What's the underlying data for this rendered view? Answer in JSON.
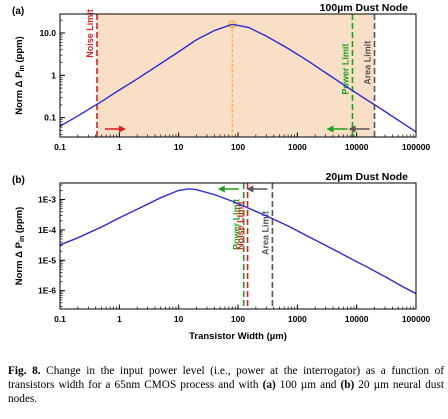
{
  "colors": {
    "curve": "#2b2bd6",
    "shade": "#f9dfc6",
    "noise": "#e41a1c",
    "power": "#1aa31a",
    "area": "#555555",
    "peak": "#f7a823"
  },
  "chart_data": [
    {
      "type": "line",
      "panel": "(a)",
      "title": "100µm Dust Node",
      "xlabel": "",
      "ylabel_main": "Norm Δ P",
      "ylabel_sub": "in",
      "ylabel_unit": "(ppm)",
      "xscale": "log",
      "yscale": "log",
      "xlim": [
        0.1,
        100000
      ],
      "ylim": [
        0.035,
        28
      ],
      "xticks": [
        0.1,
        1,
        10,
        100,
        1000,
        10000,
        100000
      ],
      "xtick_labels": [
        "0.1",
        "1",
        "10",
        "100",
        "1000",
        "10000",
        "100000"
      ],
      "yticks": [
        0.1,
        1,
        10
      ],
      "ytick_labels": [
        "0.1",
        "1",
        "10.0"
      ],
      "series": [
        {
          "x": [
            0.1,
            0.2,
            0.5,
            1,
            2,
            5,
            10,
            20,
            40,
            80,
            150,
            300,
            700,
            1500,
            3000,
            7000,
            15000,
            30000,
            60000,
            100000
          ],
          "y": [
            0.063,
            0.11,
            0.24,
            0.45,
            0.82,
            1.9,
            3.6,
            6.9,
            11.4,
            16.0,
            13.5,
            8.4,
            4.3,
            2.2,
            1.15,
            0.52,
            0.26,
            0.14,
            0.074,
            0.046
          ]
        }
      ],
      "shaded_region": [
        0.42,
        20000
      ],
      "peak_marker": {
        "x": 80,
        "y": 16.0
      },
      "limits": [
        {
          "name": "Noise Limit",
          "x": 0.42,
          "color_key": "noise",
          "arrow": "right",
          "label_y": 2.6
        },
        {
          "name": "Power Limit",
          "x": 8500,
          "color_key": "power",
          "arrow": "left",
          "label_y": 0.35
        },
        {
          "name": "Area Limit",
          "x": 20000,
          "color_key": "area",
          "arrow": "left",
          "label_y": 0.6
        }
      ]
    },
    {
      "type": "line",
      "panel": "(b)",
      "title": "20µm Dust Node",
      "xlabel": "Transistor Width (µm)",
      "ylabel_main": "Norm Δ P",
      "ylabel_sub": "in",
      "ylabel_unit": "(ppm)",
      "xscale": "log",
      "yscale": "log",
      "xlim": [
        0.1,
        100000
      ],
      "ylim": [
        2.5e-07,
        0.0035
      ],
      "xticks": [
        0.1,
        1,
        10,
        100,
        1000,
        10000,
        100000
      ],
      "xtick_labels": [
        "0.1",
        "1",
        "10",
        "100",
        "1000",
        "10000",
        "100000"
      ],
      "yticks": [
        1e-06,
        1e-05,
        0.0001,
        0.001
      ],
      "ytick_labels": [
        "1E-6",
        "1E-5",
        "1E-4",
        "1E-3"
      ],
      "series": [
        {
          "x": [
            0.1,
            0.2,
            0.5,
            1,
            2,
            5,
            10,
            15,
            20,
            40,
            80,
            150,
            300,
            700,
            1500,
            3000,
            7000,
            15000,
            30000,
            60000,
            100000
          ],
          "y": [
            3.2e-05,
            5.5e-05,
            0.000125,
            0.00025,
            0.00048,
            0.00115,
            0.002,
            0.00225,
            0.0021,
            0.00145,
            0.00088,
            0.00052,
            0.00029,
            0.000135,
            6.2e-05,
            3.1e-05,
            1.3e-05,
            6e-06,
            2.9e-06,
            1.35e-06,
            8e-07
          ]
        }
      ],
      "limits": [
        {
          "name": "Power Limit",
          "x": 125,
          "color_key": "power",
          "arrow": "left",
          "label_y": 2.2e-05
        },
        {
          "name": "Noise Limit",
          "x": 145,
          "color_key": "noise",
          "arrow": "",
          "label_y": 2.2e-05
        },
        {
          "name": "Area Limit",
          "x": 380,
          "color_key": "area",
          "arrow": "left",
          "label_y": 1.5e-05
        }
      ]
    }
  ],
  "caption": {
    "lead": "Fig. 8.",
    "text_1": " Change in the input power level (i.e., power at the interrogator) as a function of transistors width for a 65nm CMOS process and with ",
    "bold_a": "(a)",
    "text_2": " 100 µm and ",
    "bold_b": "(b)",
    "text_3": " 20 µm neural dust nodes."
  }
}
